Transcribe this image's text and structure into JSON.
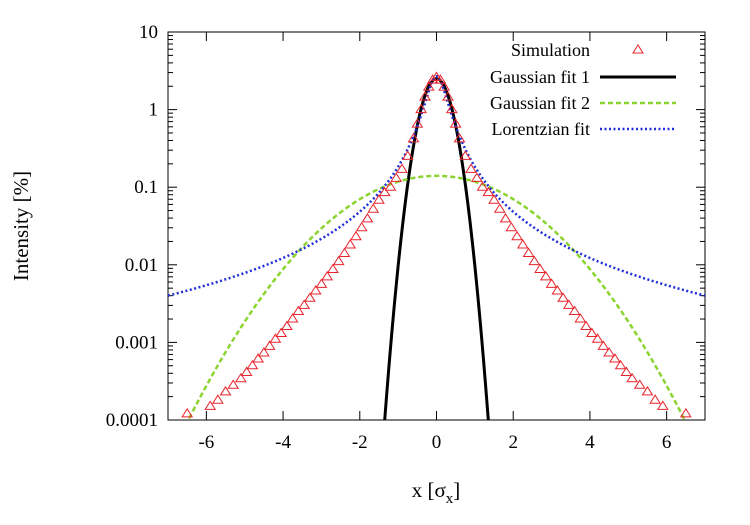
{
  "chart_data": {
    "type": "scatter",
    "title": "",
    "xlabel": "x [σx]",
    "xlabel_main": "x [σ",
    "xlabel_sub": "x",
    "xlabel_end": "]",
    "ylabel": "Intensity [%]",
    "xlim": [
      -7,
      7
    ],
    "ylim": [
      0.0001,
      10
    ],
    "yscale": "log",
    "legend_position": "top-right",
    "x_ticks": [
      -6,
      -4,
      -2,
      0,
      2,
      4,
      6
    ],
    "x_tick_labels": [
      "-6",
      "-4",
      "-2",
      "0",
      "2",
      "4",
      "6"
    ],
    "y_ticks": [
      0.0001,
      0.001,
      0.01,
      0.1,
      1,
      10
    ],
    "y_tick_labels": [
      "0.0001",
      "0.001",
      "0.01",
      "0.1",
      "1",
      "10"
    ],
    "series": [
      {
        "name": "Simulation",
        "kind": "markers",
        "marker": "triangle",
        "color": "#e8242c",
        "x": [
          -6.5,
          -5.9,
          -5.7,
          -5.5,
          -5.3,
          -5.1,
          -4.95,
          -4.8,
          -4.65,
          -4.5,
          -4.35,
          -4.2,
          -4.05,
          -3.9,
          -3.75,
          -3.6,
          -3.45,
          -3.3,
          -3.15,
          -3.0,
          -2.85,
          -2.7,
          -2.55,
          -2.4,
          -2.25,
          -2.1,
          -1.95,
          -1.8,
          -1.65,
          -1.5,
          -1.35,
          -1.2,
          -1.05,
          -0.9,
          -0.75,
          -0.6,
          -0.5,
          -0.4,
          -0.3,
          -0.2,
          -0.1,
          0.0,
          0.1,
          0.2,
          0.3,
          0.4,
          0.5,
          0.6,
          0.75,
          0.9,
          1.05,
          1.2,
          1.35,
          1.5,
          1.65,
          1.8,
          1.95,
          2.1,
          2.25,
          2.4,
          2.55,
          2.7,
          2.85,
          3.0,
          3.15,
          3.3,
          3.45,
          3.6,
          3.75,
          3.9,
          4.05,
          4.2,
          4.35,
          4.5,
          4.65,
          4.8,
          4.95,
          5.1,
          5.3,
          5.5,
          5.7,
          5.9,
          6.5
        ],
        "y": [
          0.00012,
          0.00015,
          0.00018,
          0.00023,
          0.00028,
          0.00034,
          0.00041,
          0.0005,
          0.00061,
          0.00073,
          0.00089,
          0.0011,
          0.0013,
          0.0016,
          0.002,
          0.0025,
          0.003,
          0.0037,
          0.0046,
          0.0056,
          0.007,
          0.0087,
          0.011,
          0.014,
          0.018,
          0.023,
          0.03,
          0.039,
          0.052,
          0.068,
          0.085,
          0.1,
          0.13,
          0.17,
          0.25,
          0.42,
          0.65,
          1.0,
          1.45,
          1.95,
          2.4,
          2.6,
          2.4,
          1.95,
          1.45,
          1.0,
          0.65,
          0.42,
          0.25,
          0.17,
          0.13,
          0.1,
          0.085,
          0.068,
          0.052,
          0.039,
          0.03,
          0.023,
          0.018,
          0.014,
          0.011,
          0.0087,
          0.007,
          0.0056,
          0.0046,
          0.0037,
          0.003,
          0.0025,
          0.002,
          0.0016,
          0.0013,
          0.0011,
          0.00089,
          0.00073,
          0.00061,
          0.0005,
          0.00041,
          0.00034,
          0.00028,
          0.00023,
          0.00018,
          0.00015,
          0.00012
        ]
      },
      {
        "name": "Gaussian fit 1",
        "kind": "gaussian",
        "amplitude": 2.5,
        "sigma": 0.3,
        "color": "#000000",
        "dash": "",
        "width": 3
      },
      {
        "name": "Gaussian fit 2",
        "kind": "gaussian",
        "amplitude": 0.14,
        "sigma": 1.7,
        "color": "#8bd42f",
        "dash": "5,3",
        "width": 2.5
      },
      {
        "name": "Lorentzian fit",
        "kind": "lorentzian",
        "amplitude": 2.7,
        "gamma": 0.27,
        "color": "#1e2fd8",
        "dash": "2,2.5",
        "width": 2.5
      }
    ]
  }
}
